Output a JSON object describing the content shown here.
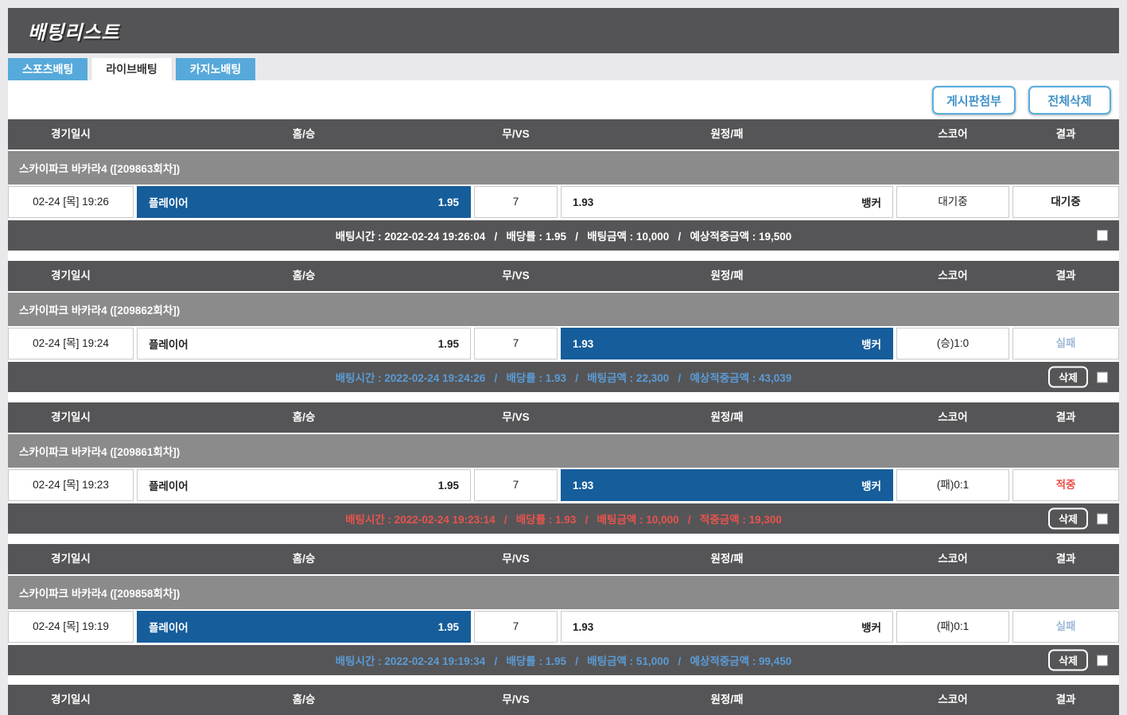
{
  "header": {
    "title": "배팅리스트"
  },
  "tabs": [
    {
      "label": "스포츠배팅"
    },
    {
      "label": "라이브배팅"
    },
    {
      "label": "카지노배팅"
    }
  ],
  "active_tab_index": 1,
  "toolbar": {
    "attach_button": "게시판첨부",
    "delete_all_button": "전체삭제"
  },
  "columns": [
    "경기일시",
    "홈/승",
    "무/VS",
    "원정/패",
    "스코어",
    "결과"
  ],
  "delete_button_label": "삭제",
  "colors": {
    "tab_blue": "#56a9da",
    "selected_cell_blue": "#165d9b",
    "header_row_gray": "#555557",
    "game_title_gray": "#8b8b8b",
    "button_blue": "#58ade0",
    "result_pending": "#222222",
    "result_fail_blue": "#9fbad6",
    "result_win_red": "#e8504a",
    "info_white": "#ffffff",
    "info_blue": "#5b9bd5",
    "info_red": "#e8534e"
  },
  "entries": [
    {
      "game_title": "스카이파크 바카라4 ([209863회차])",
      "datetime": "02-24 [목] 19:26",
      "home": {
        "name": "플레이어",
        "odds": "1.95",
        "selected": true
      },
      "draw": {
        "value": "7"
      },
      "away": {
        "odds": "1.93",
        "name": "뱅커",
        "selected": false
      },
      "score": "대기중",
      "result": {
        "label": "대기중",
        "color": "#222222"
      },
      "info": {
        "text": "배팅시간 : 2022-02-24 19:26:04   /   배당률 : 1.95   /   배팅금액 : 10,000   /   예상적중금액 : 19,500",
        "color": "#ffffff",
        "has_delete": false
      }
    },
    {
      "game_title": "스카이파크 바카라4 ([209862회차])",
      "datetime": "02-24 [목] 19:24",
      "home": {
        "name": "플레이어",
        "odds": "1.95",
        "selected": false
      },
      "draw": {
        "value": "7"
      },
      "away": {
        "odds": "1.93",
        "name": "뱅커",
        "selected": true
      },
      "score": "(승)1:0",
      "result": {
        "label": "실패",
        "color": "#9fbad6"
      },
      "info": {
        "text": "배팅시간 : 2022-02-24 19:24:26   /   배당률 : 1.93   /   배팅금액 : 22,300   /   예상적중금액 : 43,039",
        "color": "#5b9bd5",
        "has_delete": true
      }
    },
    {
      "game_title": "스카이파크 바카라4 ([209861회차])",
      "datetime": "02-24 [목] 19:23",
      "home": {
        "name": "플레이어",
        "odds": "1.95",
        "selected": false
      },
      "draw": {
        "value": "7"
      },
      "away": {
        "odds": "1.93",
        "name": "뱅커",
        "selected": true
      },
      "score": "(패)0:1",
      "result": {
        "label": "적중",
        "color": "#e8504a"
      },
      "info": {
        "text": "배팅시간 : 2022-02-24 19:23:14   /   배당률 : 1.93   /   배팅금액 : 10,000   /   적중금액 : 19,300",
        "color": "#e8534e",
        "has_delete": true
      }
    },
    {
      "game_title": "스카이파크 바카라4 ([209858회차])",
      "datetime": "02-24 [목] 19:19",
      "home": {
        "name": "플레이어",
        "odds": "1.95",
        "selected": true
      },
      "draw": {
        "value": "7"
      },
      "away": {
        "odds": "1.93",
        "name": "뱅커",
        "selected": false
      },
      "score": "(패)0:1",
      "result": {
        "label": "실패",
        "color": "#9fbad6"
      },
      "info": {
        "text": "배팅시간 : 2022-02-24 19:19:34   /   배당률 : 1.95   /   배팅금액 : 51,000   /   예상적중금액 : 99,450",
        "color": "#5b9bd5",
        "has_delete": true
      }
    }
  ]
}
